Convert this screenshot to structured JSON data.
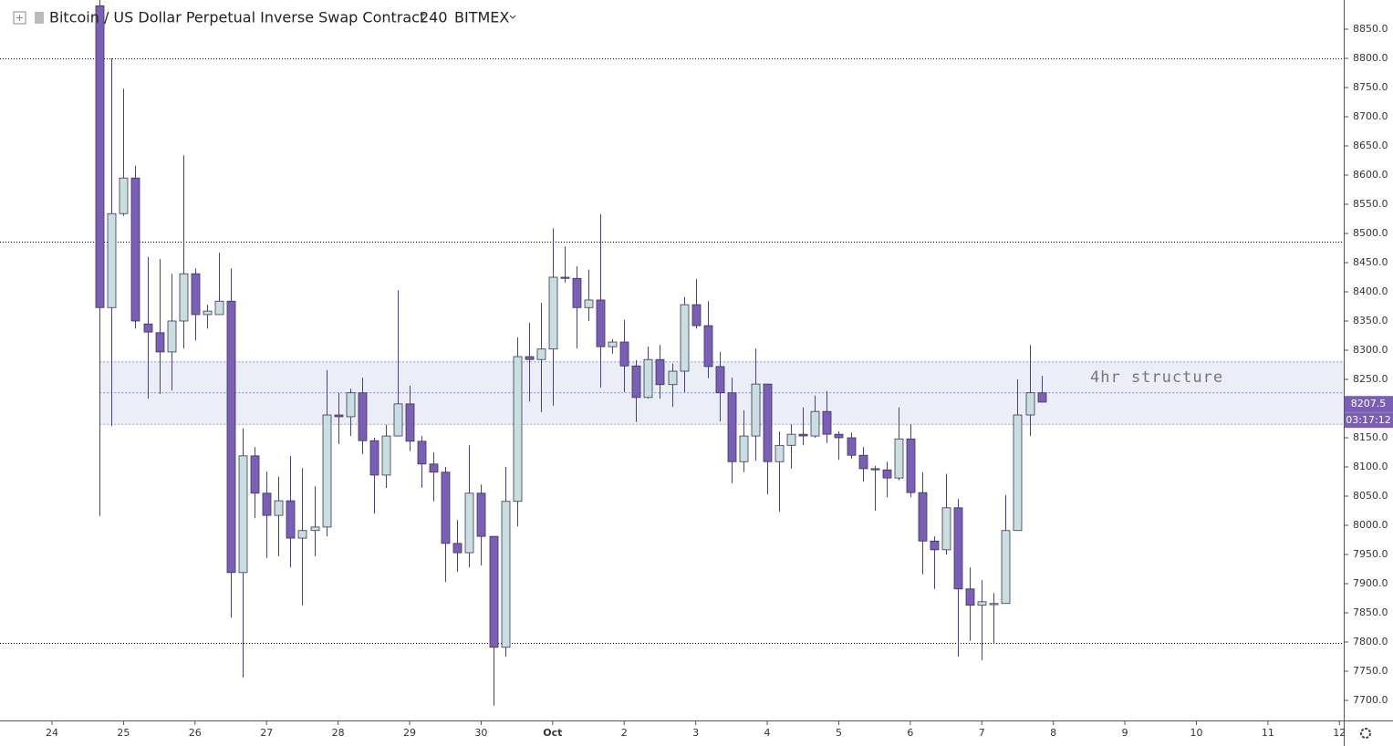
{
  "chart_data": {
    "type": "candlestick",
    "title": "Bitcoin / US Dollar Perpetual Inverse Swap Contract",
    "interval": "240",
    "exchange": "BITMEX",
    "x": [
      0.667,
      0.833,
      1,
      1.167,
      1.333,
      1.5,
      1.667,
      1.833,
      2,
      2.167,
      2.333,
      2.5,
      2.667,
      2.833,
      3,
      3.167,
      3.333,
      3.5,
      3.667,
      3.833,
      4,
      4.167,
      4.333,
      4.5,
      4.667,
      4.833,
      5,
      5.167,
      5.333,
      5.5,
      5.667,
      5.833,
      6,
      6.167,
      6.333,
      6.5,
      6.667,
      6.833,
      7,
      7.167,
      7.333,
      7.5,
      7.667,
      7.833,
      8,
      8.167,
      8.333,
      8.5,
      8.667,
      8.833,
      9,
      9.167,
      9.333,
      9.5,
      9.667,
      9.833,
      10,
      10.167,
      10.333,
      10.5,
      10.667,
      10.833,
      11,
      11.167,
      11.333,
      11.5,
      11.667,
      11.833,
      12,
      12.167,
      12.333,
      12.5,
      12.667,
      12.833,
      13,
      13.167,
      13.333,
      13.5,
      13.667,
      13.833
    ],
    "open": [
      8890,
      8373,
      8534,
      8595,
      8345,
      8330,
      8297,
      8350,
      8431,
      8361,
      8361,
      8384,
      7919,
      8119,
      8055,
      8017,
      8042,
      7978,
      7991,
      7997,
      8189,
      8186,
      8227,
      8145,
      8086,
      8153,
      8208,
      8144,
      8105,
      8091,
      7969,
      7953,
      8055,
      7981,
      7791,
      8041,
      8289,
      8284,
      8302,
      8425,
      8423,
      8373,
      8386,
      8306,
      8314,
      8273,
      8219,
      8284,
      8241,
      8264,
      8378,
      8342,
      8272,
      8227,
      8109,
      8153,
      8242,
      8109,
      8137,
      8156,
      8153,
      8195,
      8156,
      8150,
      8120,
      8097,
      8095,
      8081,
      8148,
      8056,
      7973,
      7958,
      8030,
      7891,
      7863,
      7864,
      7866,
      7991,
      8189,
      8227
    ],
    "high": [
      8900,
      8800,
      8748,
      8616,
      8460,
      8456,
      8431,
      8634,
      8440,
      8378,
      8467,
      8440,
      8166,
      8134,
      8092,
      8083,
      8119,
      8098,
      8067,
      8266,
      8227,
      8234,
      8253,
      8150,
      8172,
      8403,
      8239,
      8153,
      8125,
      8100,
      8009,
      8137,
      8070,
      7981,
      8100,
      8322,
      8347,
      8381,
      8509,
      8478,
      8444,
      8438,
      8533,
      8319,
      8352,
      8283,
      8306,
      8309,
      8277,
      8391,
      8422,
      8384,
      8297,
      8253,
      8197,
      8303,
      8242,
      8161,
      8173,
      8202,
      8222,
      8230,
      8161,
      8159,
      8134,
      8102,
      8109,
      8202,
      8173,
      8091,
      7981,
      8088,
      8045,
      7928,
      7906,
      7884,
      8052,
      8250,
      8309,
      8256
    ],
    "low": [
      8016,
      8170,
      8530,
      8337,
      8217,
      8225,
      8231,
      8303,
      8317,
      8337,
      8361,
      7842,
      7739,
      8012,
      7944,
      7947,
      7928,
      7863,
      7947,
      7981,
      8139,
      8153,
      8122,
      8020,
      8064,
      8153,
      8127,
      8064,
      8041,
      7903,
      7920,
      7928,
      7931,
      7691,
      7775,
      7998,
      8212,
      8194,
      8205,
      8416,
      8303,
      8350,
      8236,
      8294,
      8228,
      8177,
      8217,
      8217,
      8203,
      8228,
      8337,
      8252,
      8178,
      8072,
      8091,
      8111,
      8053,
      8023,
      8097,
      8137,
      8150,
      8141,
      8112,
      8114,
      8075,
      8025,
      8048,
      8077,
      8048,
      7916,
      7891,
      7950,
      7775,
      7802,
      7769,
      7798,
      7866,
      7991,
      8153,
      8211
    ],
    "close": [
      8373,
      8534,
      8595,
      8350,
      8331,
      8297,
      8350,
      8431,
      8361,
      8367,
      8384,
      7919,
      8119,
      8055,
      8017,
      8042,
      7978,
      7991,
      7997,
      8189,
      8186,
      8227,
      8145,
      8086,
      8153,
      8208,
      8144,
      8105,
      8091,
      7969,
      7953,
      8055,
      7981,
      7791,
      8041,
      8289,
      8284,
      8302,
      8425,
      8423,
      8373,
      8386,
      8306,
      8314,
      8273,
      8219,
      8284,
      8241,
      8264,
      8378,
      8342,
      8272,
      8227,
      8109,
      8153,
      8242,
      8109,
      8137,
      8156,
      8153,
      8195,
      8156,
      8150,
      8120,
      8097,
      8095,
      8081,
      8148,
      8056,
      7973,
      7958,
      8030,
      7891,
      7863,
      7869,
      7866,
      7991,
      8189,
      8227,
      8211
    ],
    "up_color": "#c9dfdf",
    "down_color": "#7b5fb5",
    "xlim": [
      -0.727,
      18.06
    ],
    "xticks": [
      {
        "value": 0,
        "label": "24"
      },
      {
        "value": 1,
        "label": "25"
      },
      {
        "value": 2,
        "label": "26"
      },
      {
        "value": 3,
        "label": "27"
      },
      {
        "value": 4,
        "label": "28"
      },
      {
        "value": 5,
        "label": "29"
      },
      {
        "value": 6,
        "label": "30"
      },
      {
        "value": 7,
        "label": "Oct"
      },
      {
        "value": 8,
        "label": "2"
      },
      {
        "value": 9,
        "label": "3"
      },
      {
        "value": 10,
        "label": "4"
      },
      {
        "value": 11,
        "label": "5"
      },
      {
        "value": 12,
        "label": "6"
      },
      {
        "value": 13,
        "label": "7"
      },
      {
        "value": 14,
        "label": "8"
      },
      {
        "value": 15,
        "label": "9"
      },
      {
        "value": 16,
        "label": "10"
      },
      {
        "value": 17,
        "label": "11"
      },
      {
        "value": 18,
        "label": "12"
      }
    ],
    "ylim": [
      7665.6,
      8900
    ],
    "yticks": [
      {
        "value": 7700,
        "label": "7700.0"
      },
      {
        "value": 7750,
        "label": "7750.0"
      },
      {
        "value": 7800,
        "label": "7800.0"
      },
      {
        "value": 7850,
        "label": "7850.0"
      },
      {
        "value": 7900,
        "label": "7900.0"
      },
      {
        "value": 7950,
        "label": "7950.0"
      },
      {
        "value": 8000,
        "label": "8000.0"
      },
      {
        "value": 8050,
        "label": "8050.0"
      },
      {
        "value": 8100,
        "label": "8100.0"
      },
      {
        "value": 8150,
        "label": "8150.0"
      },
      {
        "value": 8200,
        "label": "8200.0"
      },
      {
        "value": 8250,
        "label": "8250.0"
      },
      {
        "value": 8300,
        "label": "8300.0"
      },
      {
        "value": 8350,
        "label": "8350.0"
      },
      {
        "value": 8400,
        "label": "8400.0"
      },
      {
        "value": 8450,
        "label": "8450.0"
      },
      {
        "value": 8500,
        "label": "8500.0"
      },
      {
        "value": 8550,
        "label": "8550.0"
      },
      {
        "value": 8600,
        "label": "8600.0"
      },
      {
        "value": 8650,
        "label": "8650.0"
      },
      {
        "value": 8700,
        "label": "8700.0"
      },
      {
        "value": 8750,
        "label": "8750.0"
      },
      {
        "value": 8800,
        "label": "8800.0"
      },
      {
        "value": 8850,
        "label": "8850.0"
      }
    ],
    "levels": [
      8800,
      8486,
      7798
    ],
    "zone": {
      "top": 8280,
      "mid": 8227,
      "bottom": 8173,
      "label": "4hr structure"
    },
    "last_price": 8207.5,
    "countdown": "03:17:12"
  }
}
